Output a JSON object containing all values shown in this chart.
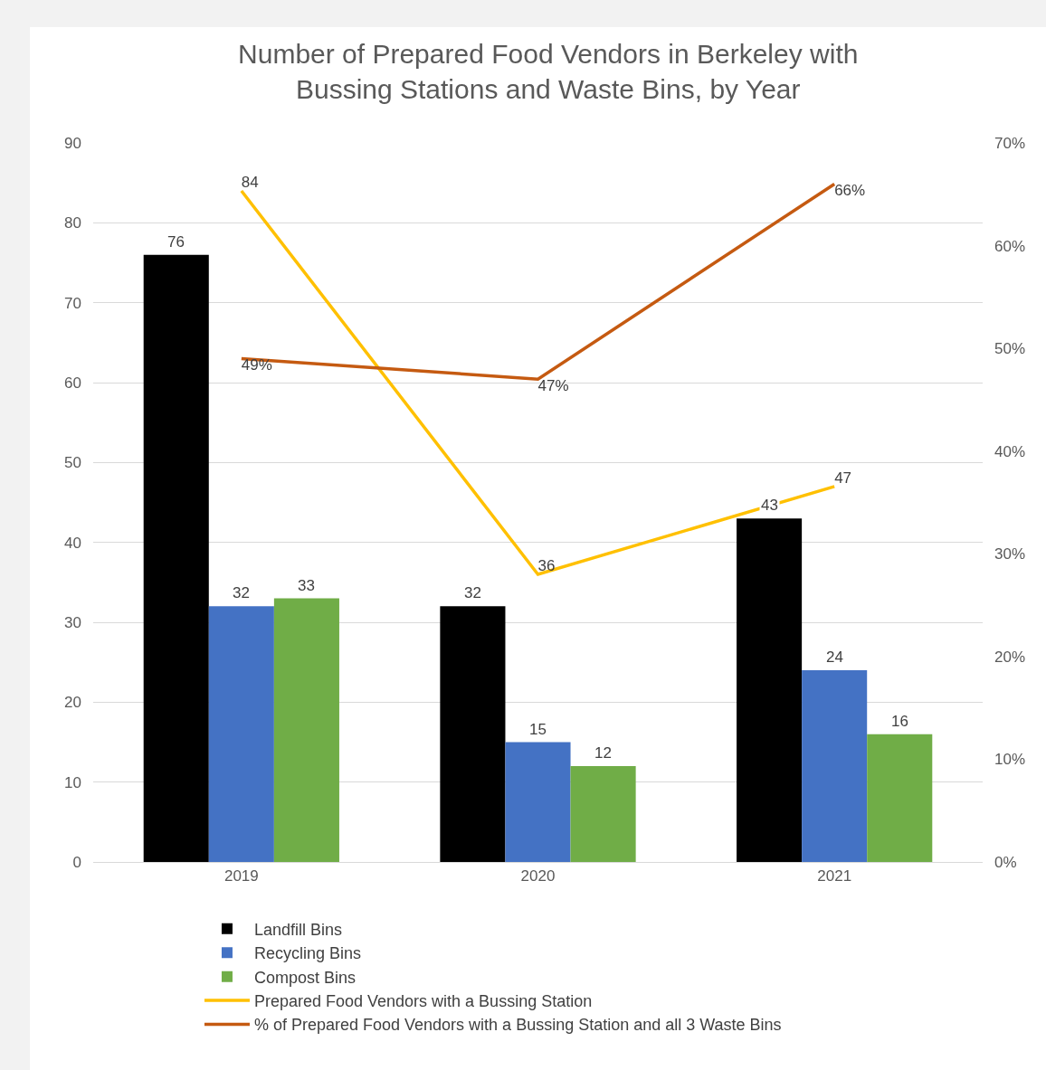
{
  "chart_data": {
    "type": "bar",
    "title": "Number of Prepared Food Vendors in Berkeley with Bussing Stations and Waste Bins, by Year",
    "categories": [
      "2019",
      "2020",
      "2021"
    ],
    "series": [
      {
        "name": "Landfill Bins",
        "color": "#000000",
        "values": [
          76,
          32,
          43
        ]
      },
      {
        "name": "Recycling Bins",
        "color": "#4472c4",
        "values": [
          32,
          15,
          24
        ]
      },
      {
        "name": "Compost Bins",
        "color": "#70ad47",
        "values": [
          33,
          12,
          16
        ]
      },
      {
        "name": "Prepared Food Vendors with a Bussing Station",
        "type": "line",
        "color": "#ffc000",
        "values": [
          84,
          36,
          47
        ]
      },
      {
        "name": "% of Prepared Food Vendors with a Bussing Station and all 3 Waste Bins",
        "type": "line",
        "axis": "y2",
        "color": "#c55a11",
        "values": [
          49,
          47,
          66
        ],
        "value_labels": [
          "49%",
          "47%",
          "66%"
        ]
      }
    ],
    "ylim": [
      0,
      90
    ],
    "yticks": [
      0,
      10,
      20,
      30,
      40,
      50,
      60,
      70,
      80,
      90
    ],
    "y2lim": [
      0,
      70
    ],
    "y2ticks": [
      {
        "value": 0,
        "label": "0%"
      },
      {
        "value": 10,
        "label": "10%"
      },
      {
        "value": 20,
        "label": "20%"
      },
      {
        "value": 30,
        "label": "30%"
      },
      {
        "value": 40,
        "label": "40%"
      },
      {
        "value": 50,
        "label": "50%"
      },
      {
        "value": 60,
        "label": "60%"
      },
      {
        "value": 70,
        "label": "70%"
      }
    ],
    "grid": "y",
    "legend": "bottom",
    "marker": "none",
    "line_style": "solid",
    "data_labels": true
  }
}
